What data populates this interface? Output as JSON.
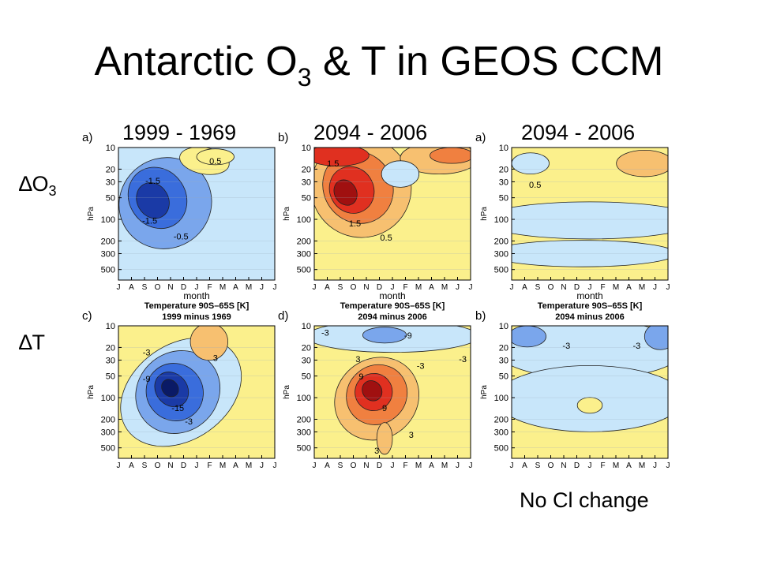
{
  "slide": {
    "title_main": "Antarctic O",
    "title_sub": "3",
    "title_rest": " & T in GEOS CCM",
    "columns": [
      "1999 - 1969",
      "2094 - 2006",
      "2094 - 2006"
    ],
    "rows": [
      {
        "symbol": "∆O",
        "sub": "3"
      },
      {
        "symbol": "∆T",
        "sub": ""
      }
    ],
    "footnote": "No Cl change"
  },
  "chart_data": [
    {
      "type": "heatmap",
      "panel": "a)",
      "title": "",
      "subtitle": "",
      "xlabel": "month",
      "ylabel": "hPa",
      "x_ticks": [
        "J",
        "A",
        "S",
        "O",
        "N",
        "D",
        "J",
        "F",
        "M",
        "A",
        "M",
        "J",
        "J"
      ],
      "y_ticks": [
        "10",
        "20",
        "30",
        "50",
        "100",
        "200",
        "300",
        "500"
      ],
      "y_values_hPa": [
        10,
        20,
        30,
        50,
        100,
        200,
        300,
        500
      ],
      "ylim": [
        10,
        700
      ],
      "ylog": true,
      "contour_labels": [
        "-1.5",
        "-1.5",
        "-0.5",
        "0.5"
      ],
      "colors": {
        "background": "#c8e6fa",
        "positive": "#fbf08c",
        "negative": [
          "#7aa6ec",
          "#3a6ddc",
          "#1a3aa6",
          "#0a1a66"
        ]
      }
    },
    {
      "type": "heatmap",
      "panel": "b)",
      "title": "",
      "subtitle": "",
      "xlabel": "month",
      "ylabel": "hPa",
      "x_ticks": [
        "J",
        "A",
        "S",
        "O",
        "N",
        "D",
        "J",
        "F",
        "M",
        "A",
        "M",
        "J",
        "J"
      ],
      "y_ticks": [
        "10",
        "20",
        "30",
        "50",
        "100",
        "200",
        "300",
        "500"
      ],
      "y_values_hPa": [
        10,
        20,
        30,
        50,
        100,
        200,
        300,
        500
      ],
      "ylim": [
        10,
        700
      ],
      "ylog": true,
      "contour_labels": [
        "1.5",
        "1.5",
        "0.5"
      ],
      "colors": {
        "background": "#fbf08c",
        "positive": [
          "#f7c070",
          "#f08040",
          "#e03020",
          "#a01010"
        ],
        "negative": "#c8e6fa"
      }
    },
    {
      "type": "heatmap",
      "panel": "a)",
      "title": "",
      "subtitle": "",
      "xlabel": "month",
      "ylabel": "hPa",
      "x_ticks": [
        "J",
        "A",
        "S",
        "O",
        "N",
        "D",
        "J",
        "F",
        "M",
        "A",
        "M",
        "J",
        "J"
      ],
      "y_ticks": [
        "10",
        "20",
        "30",
        "50",
        "100",
        "200",
        "300",
        "500"
      ],
      "y_values_hPa": [
        10,
        20,
        30,
        50,
        100,
        200,
        300,
        500
      ],
      "ylim": [
        10,
        700
      ],
      "ylog": true,
      "contour_labels": [
        "0.5"
      ],
      "colors": {
        "background": "#fbf08c",
        "positive": "#f7c070",
        "negative": "#c8e6fa"
      }
    },
    {
      "type": "heatmap",
      "panel": "c)",
      "title": "Temperature 90S–65S [K]",
      "subtitle": "1999 minus 1969",
      "xlabel": "",
      "ylabel": "hPa",
      "x_ticks": [
        "J",
        "A",
        "S",
        "O",
        "N",
        "D",
        "J",
        "F",
        "M",
        "A",
        "M",
        "J",
        "J"
      ],
      "y_ticks": [
        "10",
        "20",
        "30",
        "50",
        "100",
        "200",
        "300",
        "500"
      ],
      "y_values_hPa": [
        10,
        20,
        30,
        50,
        100,
        200,
        300,
        500
      ],
      "ylim": [
        10,
        700
      ],
      "ylog": true,
      "contour_labels": [
        "-3",
        "-9",
        "-15",
        "-3",
        "3"
      ],
      "colors": {
        "background": "#fbf08c",
        "positive": "#f7c070",
        "negative": [
          "#c8e6fa",
          "#7aa6ec",
          "#3a6ddc",
          "#1a3aa6",
          "#0a1a66"
        ]
      }
    },
    {
      "type": "heatmap",
      "panel": "d)",
      "title": "Temperature 90S–65S [K]",
      "subtitle": "2094 minus 2006",
      "xlabel": "",
      "ylabel": "hPa",
      "x_ticks": [
        "J",
        "A",
        "S",
        "O",
        "N",
        "D",
        "J",
        "F",
        "M",
        "A",
        "M",
        "J",
        "J"
      ],
      "y_ticks": [
        "10",
        "20",
        "30",
        "50",
        "100",
        "200",
        "300",
        "500"
      ],
      "y_values_hPa": [
        10,
        20,
        30,
        50,
        100,
        200,
        300,
        500
      ],
      "ylim": [
        10,
        700
      ],
      "ylog": true,
      "contour_labels": [
        "-3",
        "-9",
        "-3",
        "-3",
        "3",
        "9",
        "9",
        "3",
        "3"
      ],
      "colors": {
        "background": "#fbf08c",
        "positive": [
          "#f7c070",
          "#f08040",
          "#e03020",
          "#a01010"
        ],
        "negative": [
          "#c8e6fa",
          "#7aa6ec"
        ]
      }
    },
    {
      "type": "heatmap",
      "panel": "b)",
      "title": "Temperature 90S–65S [K]",
      "subtitle": "2094 minus 2006",
      "xlabel": "",
      "ylabel": "hPa",
      "x_ticks": [
        "J",
        "A",
        "S",
        "O",
        "N",
        "D",
        "J",
        "F",
        "M",
        "A",
        "M",
        "J",
        "J"
      ],
      "y_ticks": [
        "10",
        "20",
        "30",
        "50",
        "100",
        "200",
        "300",
        "500"
      ],
      "y_values_hPa": [
        10,
        20,
        30,
        50,
        100,
        200,
        300,
        500
      ],
      "ylim": [
        10,
        700
      ],
      "ylog": true,
      "contour_labels": [
        "-3",
        "-3"
      ],
      "colors": {
        "background": "#fbf08c",
        "positive": "#fbf08c",
        "negative": [
          "#c8e6fa",
          "#7aa6ec"
        ]
      }
    }
  ]
}
